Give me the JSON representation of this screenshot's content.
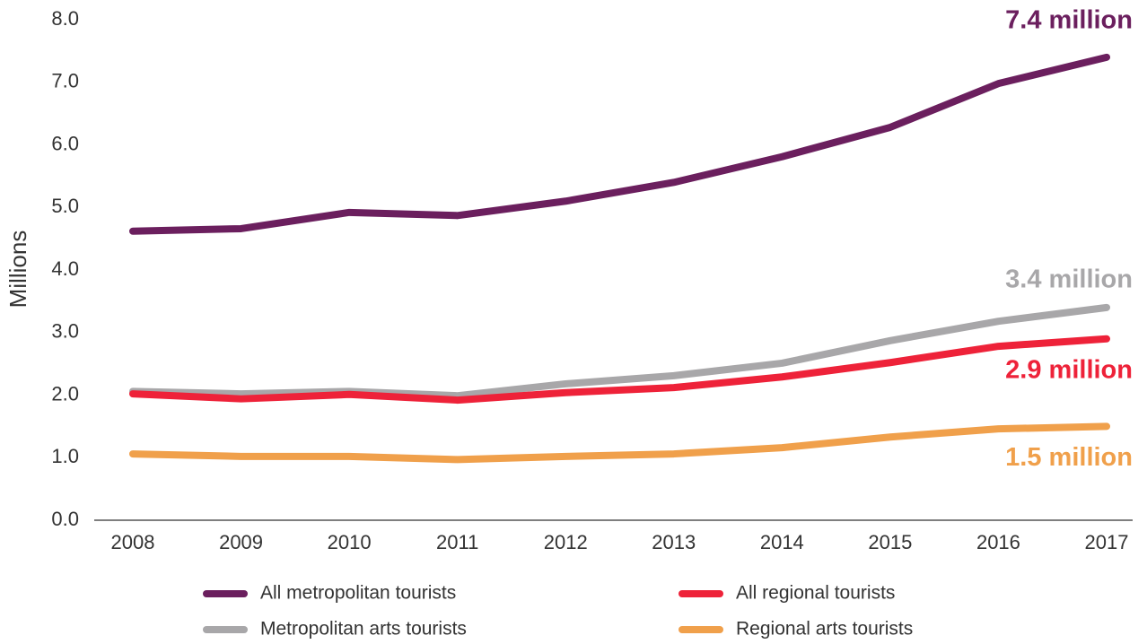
{
  "chart_data": {
    "type": "line",
    "y_label": "Millions",
    "categories": [
      "2008",
      "2009",
      "2010",
      "2011",
      "2012",
      "2013",
      "2014",
      "2015",
      "2016",
      "2017"
    ],
    "series": [
      {
        "name": "All metropolitan tourists",
        "color": "#6b1f5e",
        "values": [
          4.62,
          4.66,
          4.92,
          4.87,
          5.1,
          5.4,
          5.81,
          6.28,
          6.98,
          7.4
        ],
        "end_label": "7.4 million"
      },
      {
        "name": "All regional tourists",
        "color": "#ee2239",
        "values": [
          2.02,
          1.94,
          2.01,
          1.92,
          2.04,
          2.12,
          2.29,
          2.52,
          2.78,
          2.9
        ],
        "end_label": "2.9 million"
      },
      {
        "name": "Metropolitan arts tourists",
        "color": "#a8a7a9",
        "values": [
          2.06,
          2.02,
          2.06,
          1.99,
          2.18,
          2.31,
          2.51,
          2.87,
          3.18,
          3.4
        ],
        "end_label": "3.4 million"
      },
      {
        "name": "Regional arts tourists",
        "color": "#f0a04b",
        "values": [
          1.06,
          1.02,
          1.02,
          0.97,
          1.02,
          1.06,
          1.16,
          1.33,
          1.46,
          1.5
        ],
        "end_label": "1.5 million"
      }
    ],
    "ylim": [
      0,
      8
    ],
    "yticks": [
      {
        "value": 0,
        "label": "0.0"
      },
      {
        "value": 1,
        "label": "1.0"
      },
      {
        "value": 2,
        "label": "2.0"
      },
      {
        "value": 3,
        "label": "3.0"
      },
      {
        "value": 4,
        "label": "4.0"
      },
      {
        "value": 5,
        "label": "5.0"
      },
      {
        "value": 6,
        "label": "6.0"
      },
      {
        "value": 7,
        "label": "7.0"
      },
      {
        "value": 8,
        "label": "8.0"
      }
    ],
    "grid": false
  }
}
